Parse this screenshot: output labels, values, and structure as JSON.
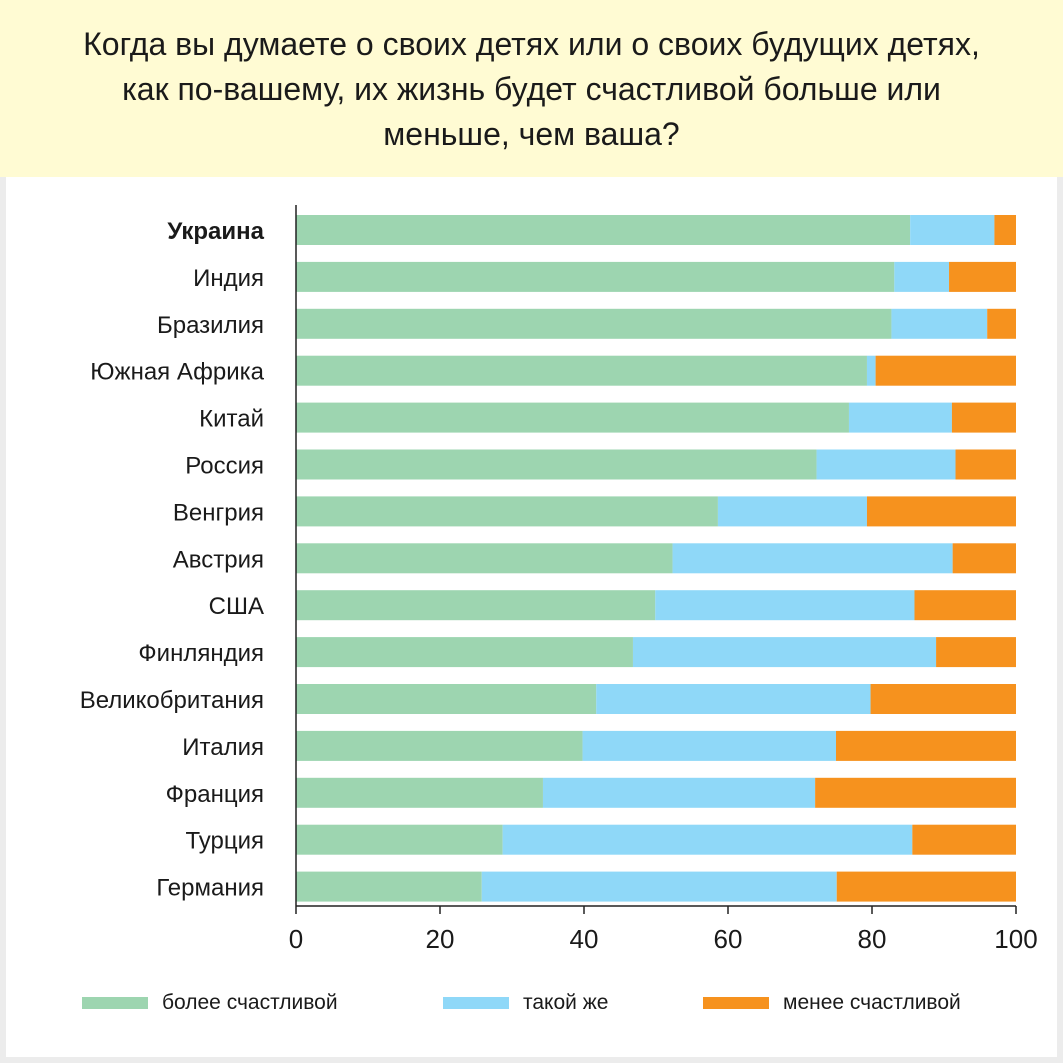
{
  "title": "Когда вы думаете о своих детях или о своих будущих детях, как по-вашему, их жизнь будет счастливой больше или меньше, чем ваша?",
  "colors": {
    "more": "#9dd5b0",
    "same": "#8fd8f8",
    "less": "#f6921e",
    "title_background": "#fffbd3"
  },
  "chart_data": {
    "type": "bar",
    "orientation": "horizontal",
    "stacked": true,
    "title": "Когда вы думаете о своих детях или о своих будущих детях, как по-вашему, их жизнь будет счастливой больше или меньше, чем ваша?",
    "categories": [
      "Украина",
      "Индия",
      "Бразилия",
      "Южная Африка",
      "Китай",
      "Россия",
      "Венгрия",
      "Австрия",
      "США",
      "Финляндия",
      "Великобритания",
      "Италия",
      "Франция",
      "Турция",
      "Германия"
    ],
    "highlighted_category": "Украина",
    "series": [
      {
        "name": "более счастливой",
        "color": "#9dd5b0",
        "values": [
          85.3,
          83.1,
          82.7,
          79.3,
          76.8,
          72.3,
          58.6,
          52.3,
          49.9,
          46.8,
          41.7,
          39.8,
          34.3,
          28.7,
          25.8
        ]
      },
      {
        "name": "такой же",
        "color": "#8fd8f8",
        "values": [
          11.7,
          7.6,
          13.3,
          1.2,
          14.3,
          19.3,
          20.7,
          38.9,
          36.0,
          42.1,
          38.1,
          35.2,
          37.8,
          56.9,
          49.3
        ]
      },
      {
        "name": "менее счастливой",
        "color": "#f6921e",
        "values": [
          3.0,
          9.3,
          4.0,
          19.5,
          8.9,
          8.4,
          20.7,
          8.8,
          14.1,
          11.1,
          20.2,
          25.0,
          27.9,
          14.4,
          24.9
        ]
      }
    ],
    "xlim": [
      0,
      100
    ],
    "xticks": [
      "0",
      "20",
      "40",
      "60",
      "80",
      "100"
    ],
    "grid": false,
    "legend_position": "bottom"
  }
}
